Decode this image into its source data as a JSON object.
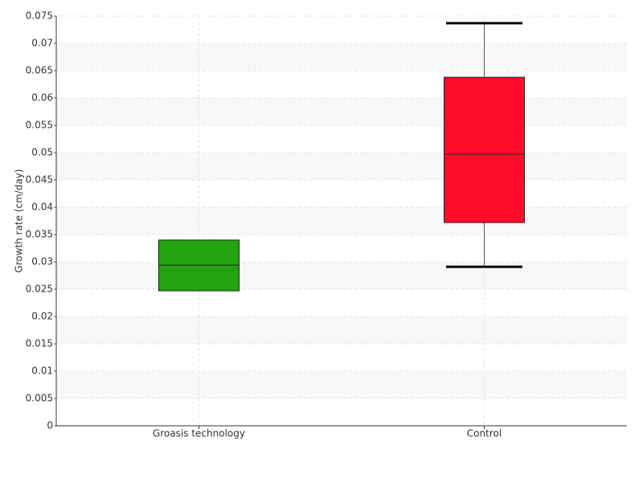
{
  "chart_data": {
    "type": "box",
    "y_label": "Growth rate (cm/day)",
    "categories": [
      "Groasis technology",
      "Control"
    ],
    "boxes": [
      {
        "min": 0.0247,
        "q1": 0.0247,
        "median": 0.0294,
        "q3": 0.034,
        "max": 0.034,
        "color": "#22a40f"
      },
      {
        "min": 0.0291,
        "q1": 0.0372,
        "median": 0.0497,
        "q3": 0.0638,
        "max": 0.0737,
        "color": "#ff0d2a"
      }
    ],
    "ylim": [
      0,
      0.075
    ],
    "yticks": [
      0,
      0.005,
      0.01,
      0.015,
      0.02,
      0.025,
      0.03,
      0.035,
      0.04,
      0.045,
      0.05,
      0.055,
      0.06,
      0.065,
      0.07,
      0.075
    ],
    "grid": true
  }
}
